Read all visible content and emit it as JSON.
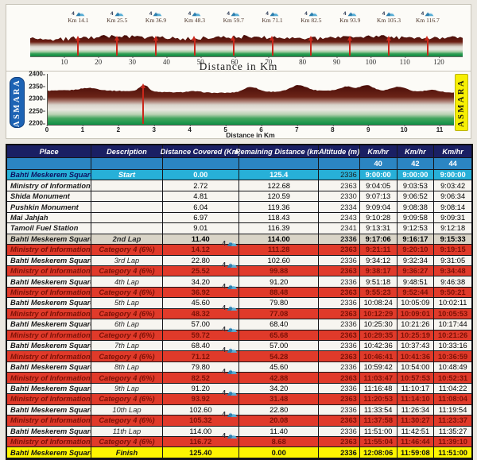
{
  "top_chart": {
    "xlabel": "Distance in Km",
    "axis_max": 127,
    "xticks": [
      10,
      20,
      30,
      40,
      50,
      60,
      70,
      80,
      90,
      100,
      110,
      120
    ],
    "markers": [
      {
        "km": 14.1,
        "label": "Km 14.1"
      },
      {
        "km": 25.5,
        "label": "Km 25.5"
      },
      {
        "km": 36.9,
        "label": "Km 36.9"
      },
      {
        "km": 48.3,
        "label": "Km 48.3"
      },
      {
        "km": 59.7,
        "label": "Km 59.7"
      },
      {
        "km": 71.1,
        "label": "Km 71.1"
      },
      {
        "km": 82.5,
        "label": "Km 82.5"
      },
      {
        "km": 93.9,
        "label": "Km 93.9"
      },
      {
        "km": 105.3,
        "label": "Km 105.3"
      },
      {
        "km": 116.7,
        "label": "Km 116.7"
      }
    ]
  },
  "profile_chart": {
    "xlabel": "Distance in Km",
    "left_label": "ASMARA",
    "right_label": "ASMARA",
    "axis_max_km": 11.4,
    "xticks": [
      0,
      1,
      2,
      3,
      4,
      5,
      6,
      7,
      8,
      9,
      10,
      11
    ],
    "yticks": [
      2400,
      2350,
      2300,
      2250,
      2200
    ],
    "elevation_range": [
      2195,
      2400
    ],
    "arrow_km": 2.7
  },
  "table": {
    "columns": [
      "Place",
      "Description",
      "Distance Covered (Km)",
      "Remaining Distance (km)",
      "Altitude (m)",
      "Km/hr",
      "Km/hr",
      "Km/hr"
    ],
    "speeds": [
      "40",
      "42",
      "44"
    ],
    "rows": [
      {
        "place": "Bahti Meskerem Square",
        "description": "Start",
        "covered": "0.00",
        "remaining": "125.4",
        "altitude": "2336",
        "t40": "9:00:00",
        "t42": "9:00:00",
        "t44": "9:00:00",
        "style": "start",
        "icon": false
      },
      {
        "place": "Ministry of Information",
        "description": "",
        "covered": "2.72",
        "remaining": "122.68",
        "altitude": "2363",
        "t40": "9:04:05",
        "t42": "9:03:53",
        "t44": "9:03:42",
        "style": "normal",
        "icon": false
      },
      {
        "place": "Shida Monument",
        "description": "",
        "covered": "4.81",
        "remaining": "120.59",
        "altitude": "2330",
        "t40": "9:07:13",
        "t42": "9:06:52",
        "t44": "9:06:34",
        "style": "normal",
        "icon": false
      },
      {
        "place": "Pushkin Monument",
        "description": "",
        "covered": "6.04",
        "remaining": "119.36",
        "altitude": "2334",
        "t40": "9:09:04",
        "t42": "9:08:38",
        "t44": "9:08:14",
        "style": "normal",
        "icon": false
      },
      {
        "place": "Mai Jahjah",
        "description": "",
        "covered": "6.97",
        "remaining": "118.43",
        "altitude": "2343",
        "t40": "9:10:28",
        "t42": "9:09:58",
        "t44": "9:09:31",
        "style": "normal",
        "icon": false
      },
      {
        "place": "Tamoil Fuel Station",
        "description": "",
        "covered": "9.01",
        "remaining": "116.39",
        "altitude": "2341",
        "t40": "9:13:31",
        "t42": "9:12:53",
        "t44": "9:12:18",
        "style": "normal",
        "icon": false
      },
      {
        "place": "Bahti Meskerem Square",
        "description": "2nd Lap",
        "covered": "11.40",
        "remaining": "114.00",
        "altitude": "2336",
        "t40": "9:17:06",
        "t42": "9:16:17",
        "t44": "9:15:33",
        "style": "lap2",
        "icon": false
      },
      {
        "place": "Ministry of Information",
        "description": "Category 4 (6%)",
        "covered": "14.12",
        "remaining": "111.28",
        "altitude": "2363",
        "t40": "9:21:11",
        "t42": "9:20:10",
        "t44": "9:19:15",
        "style": "category",
        "icon": true
      },
      {
        "place": "Bahti Meskerem Square",
        "description": "3rd Lap",
        "covered": "22.80",
        "remaining": "102.60",
        "altitude": "2336",
        "t40": "9:34:12",
        "t42": "9:32:34",
        "t44": "9:31:05",
        "style": "normal",
        "icon": false
      },
      {
        "place": "Ministry of Information",
        "description": "Category 4 (6%)",
        "covered": "25.52",
        "remaining": "99.88",
        "altitude": "2363",
        "t40": "9:38:17",
        "t42": "9:36:27",
        "t44": "9:34:48",
        "style": "category",
        "icon": true
      },
      {
        "place": "Bahti Meskerem Square",
        "description": "4th Lap",
        "covered": "34.20",
        "remaining": "91.20",
        "altitude": "2336",
        "t40": "9:51:18",
        "t42": "9:48:51",
        "t44": "9:46:38",
        "style": "normal",
        "icon": false
      },
      {
        "place": "Ministry of Information",
        "description": "Category 4 (6%)",
        "covered": "36.92",
        "remaining": "88.48",
        "altitude": "2363",
        "t40": "9:55:23",
        "t42": "9:52:44",
        "t44": "9:50:21",
        "style": "category",
        "icon": true
      },
      {
        "place": "Bahti Meskerem Square",
        "description": "5th Lap",
        "covered": "45.60",
        "remaining": "79.80",
        "altitude": "2336",
        "t40": "10:08:24",
        "t42": "10:05:09",
        "t44": "10:02:11",
        "style": "normal",
        "icon": false
      },
      {
        "place": "Ministry of Information",
        "description": "Category 4 (6%)",
        "covered": "48.32",
        "remaining": "77.08",
        "altitude": "2363",
        "t40": "10:12:29",
        "t42": "10:09:01",
        "t44": "10:05:53",
        "style": "category",
        "icon": true
      },
      {
        "place": "Bahti Meskerem Square",
        "description": "6th Lap",
        "covered": "57.00",
        "remaining": "68.40",
        "altitude": "2336",
        "t40": "10:25:30",
        "t42": "10:21:26",
        "t44": "10:17:44",
        "style": "normal",
        "icon": false
      },
      {
        "place": "Ministry of Information",
        "description": "Category 4 (6%)",
        "covered": "59.72",
        "remaining": "65.68",
        "altitude": "2363",
        "t40": "10:29:35",
        "t42": "10:25:19",
        "t44": "10:21:26",
        "style": "category",
        "icon": true
      },
      {
        "place": "Bahti Meskerem Square",
        "description": "7th Lap",
        "covered": "68.40",
        "remaining": "57.00",
        "altitude": "2336",
        "t40": "10:42:36",
        "t42": "10:37:43",
        "t44": "10:33:16",
        "style": "normal",
        "icon": false
      },
      {
        "place": "Ministry of Information",
        "description": "Category 4 (6%)",
        "covered": "71.12",
        "remaining": "54.28",
        "altitude": "2363",
        "t40": "10:46:41",
        "t42": "10:41:36",
        "t44": "10:36:59",
        "style": "category",
        "icon": true
      },
      {
        "place": "Bahti Meskerem Square",
        "description": "8th Lap",
        "covered": "79.80",
        "remaining": "45.60",
        "altitude": "2336",
        "t40": "10:59:42",
        "t42": "10:54:00",
        "t44": "10:48:49",
        "style": "normal",
        "icon": false
      },
      {
        "place": "Ministry of Information",
        "description": "Category 4 (6%)",
        "covered": "82.52",
        "remaining": "42.88",
        "altitude": "2363",
        "t40": "11:03:47",
        "t42": "10:57:53",
        "t44": "10:52:31",
        "style": "category",
        "icon": true
      },
      {
        "place": "Bahti Meskerem Square",
        "description": "9th Lap",
        "covered": "91.20",
        "remaining": "34.20",
        "altitude": "2336",
        "t40": "11:16:48",
        "t42": "11:10:17",
        "t44": "11:04:22",
        "style": "normal",
        "icon": false
      },
      {
        "place": "Ministry of Information",
        "description": "Category 4 (6%)",
        "covered": "93.92",
        "remaining": "31.48",
        "altitude": "2363",
        "t40": "11:20:53",
        "t42": "11:14:10",
        "t44": "11:08:04",
        "style": "category",
        "icon": true
      },
      {
        "place": "Bahti Meskerem Square",
        "description": "10th Lap",
        "covered": "102.60",
        "remaining": "22.80",
        "altitude": "2336",
        "t40": "11:33:54",
        "t42": "11:26:34",
        "t44": "11:19:54",
        "style": "normal",
        "icon": false
      },
      {
        "place": "Ministry of Information",
        "description": "Category 4 (6%)",
        "covered": "105.32",
        "remaining": "20.08",
        "altitude": "2363",
        "t40": "11:37:58",
        "t42": "11:30:27",
        "t44": "11:23:37",
        "style": "category",
        "icon": true
      },
      {
        "place": "Bahti Meskerem Square",
        "description": "11th Lap",
        "covered": "114.00",
        "remaining": "11.40",
        "altitude": "2336",
        "t40": "11:51:00",
        "t42": "11:42:51",
        "t44": "11:35:27",
        "style": "normal",
        "icon": false
      },
      {
        "place": "Ministry of Information",
        "description": "Category 4 (6%)",
        "covered": "116.72",
        "remaining": "8.68",
        "altitude": "2363",
        "t40": "11:55:04",
        "t42": "11:46:44",
        "t44": "11:39:10",
        "style": "category",
        "icon": true
      },
      {
        "place": "Bahti Meskerem Square",
        "description": "Finish",
        "covered": "125.40",
        "remaining": "0.00",
        "altitude": "2336",
        "t40": "12:08:06",
        "t42": "11:59:08",
        "t44": "11:51:00",
        "style": "finish",
        "icon": false
      }
    ]
  },
  "colors": {
    "header_navy": "#1a1f63",
    "speed_blue": "#2b85c2",
    "start_cyan": "#27b0d8",
    "category_red": "#e03a2a",
    "category_text": "#7c1106",
    "lap2_tan": "#d9d4c7",
    "finish_yellow": "#fdf501",
    "asmara_blue": "#1d63b4",
    "asmara_yellow": "#f7ef04"
  }
}
